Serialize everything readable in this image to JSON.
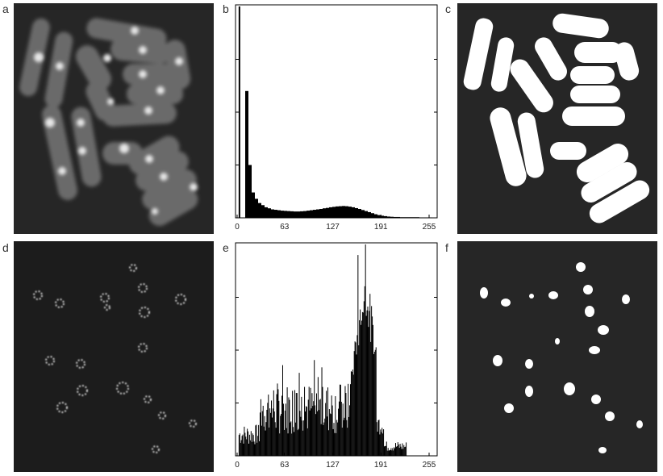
{
  "figure": {
    "panel_labels": [
      "a",
      "b",
      "c",
      "d",
      "e",
      "f"
    ]
  },
  "chart_data": [
    {
      "panel": "b",
      "type": "bar",
      "title": "",
      "xlabel": "",
      "ylabel": "",
      "xlim": [
        0,
        255
      ],
      "x_ticks": [
        "0",
        "63",
        "127",
        "191",
        "255"
      ],
      "grid": false,
      "peak": {
        "x": 2,
        "relative_height": 1.0
      },
      "values": [
        0,
        0,
        0.6,
        0.25,
        0.12,
        0.09,
        0.07,
        0.06,
        0.05,
        0.045,
        0.04,
        0.038,
        0.036,
        0.034,
        0.033,
        0.032,
        0.031,
        0.03,
        0.03,
        0.031,
        0.032,
        0.034,
        0.036,
        0.038,
        0.04,
        0.042,
        0.045,
        0.047,
        0.05,
        0.052,
        0.054,
        0.055,
        0.056,
        0.055,
        0.053,
        0.05,
        0.046,
        0.042,
        0.037,
        0.032,
        0.027,
        0.022,
        0.017,
        0.013,
        0.01,
        0.008,
        0.006,
        0.005,
        0.004,
        0.004,
        0.003,
        0.003,
        0.003,
        0.003,
        0.003,
        0.003,
        0.002,
        0.002,
        0.002,
        0.002
      ]
    },
    {
      "panel": "e",
      "type": "bar",
      "title": "",
      "xlabel": "",
      "ylabel": "",
      "xlim": [
        0,
        255
      ],
      "x_ticks": [
        "0",
        "63",
        "127",
        "191",
        "255"
      ],
      "grid": false
    }
  ]
}
